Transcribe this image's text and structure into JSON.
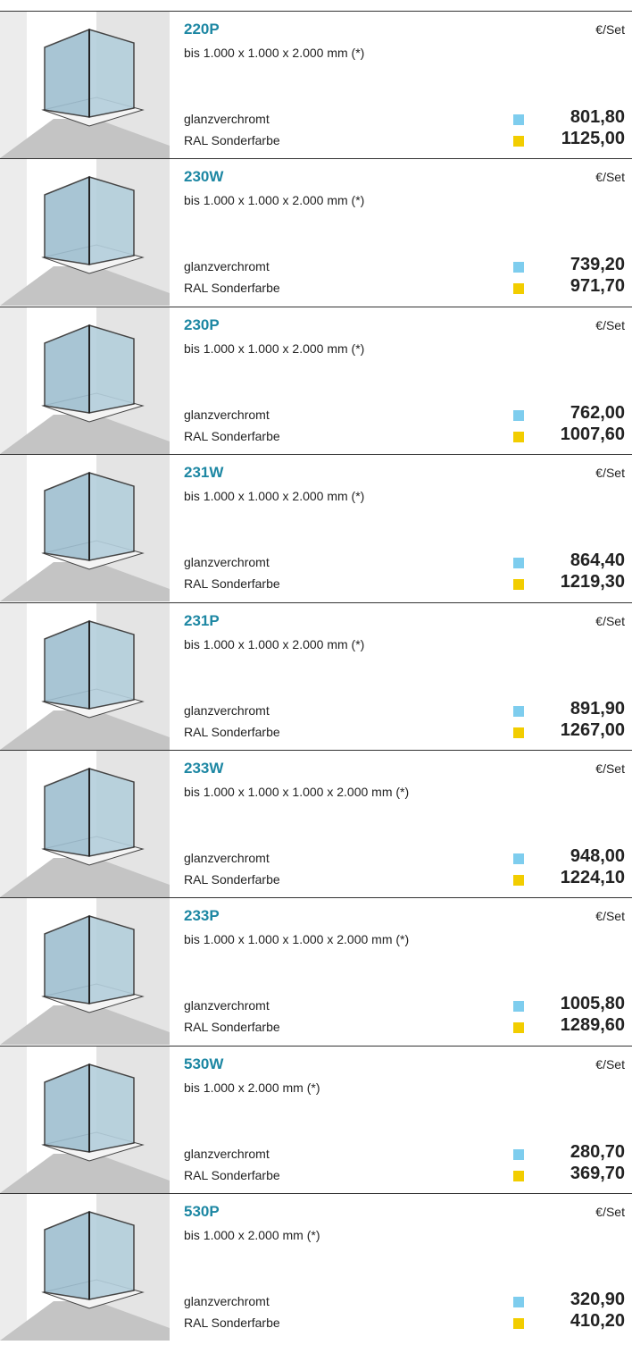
{
  "items": [
    {
      "model": "220P",
      "size": "bis 1.000 x 1.000 x 2.000 mm (*)",
      "unit": "€/Set",
      "finishes": [
        {
          "name": "glanzverchromt",
          "price": "801,80"
        },
        {
          "name": "RAL Sonderfarbe",
          "price": "1125,00"
        }
      ]
    },
    {
      "model": "230W",
      "size": "bis 1.000 x 1.000 x 2.000 mm (*)",
      "unit": "€/Set",
      "finishes": [
        {
          "name": "glanzverchromt",
          "price": "739,20"
        },
        {
          "name": "RAL Sonderfarbe",
          "price": "971,70"
        }
      ]
    },
    {
      "model": "230P",
      "size": "bis 1.000 x 1.000 x 2.000 mm (*)",
      "unit": "€/Set",
      "finishes": [
        {
          "name": "glanzverchromt",
          "price": "762,00"
        },
        {
          "name": "RAL Sonderfarbe",
          "price": "1007,60"
        }
      ]
    },
    {
      "model": "231W",
      "size": "bis 1.000 x 1.000 x 2.000 mm (*)",
      "unit": "€/Set",
      "finishes": [
        {
          "name": "glanzverchromt",
          "price": "864,40"
        },
        {
          "name": "RAL Sonderfarbe",
          "price": "1219,30"
        }
      ]
    },
    {
      "model": "231P",
      "size": "bis 1.000 x 1.000 x 2.000 mm (*)",
      "unit": "€/Set",
      "finishes": [
        {
          "name": "glanzverchromt",
          "price": "891,90"
        },
        {
          "name": "RAL Sonderfarbe",
          "price": "1267,00"
        }
      ]
    },
    {
      "model": "233W",
      "size": "bis 1.000 x 1.000 x 1.000 x 2.000 mm (*)",
      "unit": "€/Set",
      "finishes": [
        {
          "name": "glanzverchromt",
          "price": "948,00"
        },
        {
          "name": "RAL Sonderfarbe",
          "price": "1224,10"
        }
      ]
    },
    {
      "model": "233P",
      "size": "bis 1.000 x 1.000 x 1.000 x 2.000 mm (*)",
      "unit": "€/Set",
      "finishes": [
        {
          "name": "glanzverchromt",
          "price": "1005,80"
        },
        {
          "name": "RAL Sonderfarbe",
          "price": "1289,60"
        }
      ]
    },
    {
      "model": "530W",
      "size": "bis 1.000 x 2.000 mm (*)",
      "unit": "€/Set",
      "finishes": [
        {
          "name": "glanzverchromt",
          "price": "280,70"
        },
        {
          "name": "RAL Sonderfarbe",
          "price": "369,70"
        }
      ]
    },
    {
      "model": "530P",
      "size": "bis 1.000 x 2.000 mm (*)",
      "unit": "€/Set",
      "finishes": [
        {
          "name": "glanzverchromt",
          "price": "320,90"
        },
        {
          "name": "RAL Sonderfarbe",
          "price": "410,20"
        }
      ]
    }
  ]
}
